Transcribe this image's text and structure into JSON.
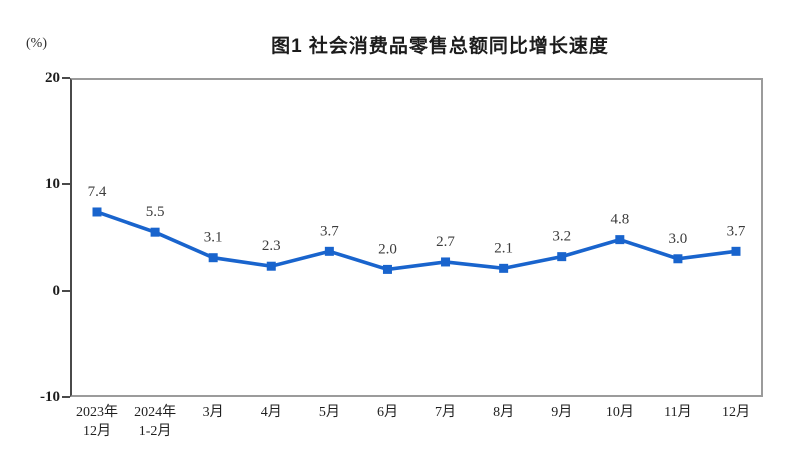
{
  "chart": {
    "title": "图1  社会消费品零售总额同比增长速度",
    "unit_label": "(%)"
  },
  "chart_data": {
    "type": "line",
    "title": "图1  社会消费品零售总额同比增长速度",
    "xlabel": "",
    "ylabel": "(%)",
    "categories": [
      [
        "2023年",
        "12月"
      ],
      [
        "2024年",
        "1-2月"
      ],
      [
        "3月"
      ],
      [
        "4月"
      ],
      [
        "5月"
      ],
      [
        "6月"
      ],
      [
        "7月"
      ],
      [
        "8月"
      ],
      [
        "9月"
      ],
      [
        "10月"
      ],
      [
        "11月"
      ],
      [
        "12月"
      ]
    ],
    "values": [
      7.4,
      5.5,
      3.1,
      2.3,
      3.7,
      2.0,
      2.7,
      2.1,
      3.2,
      4.8,
      3.0,
      3.7
    ],
    "ylim": [
      -10,
      20
    ],
    "yticks": [
      20,
      10,
      0,
      -10
    ],
    "grid": false,
    "legend": false,
    "marker": "square",
    "line_color": "#1964cd",
    "data_label_color": "#3c3c3c",
    "axis_text_color": "#1c1c1c",
    "border_color": "#9b9b9b"
  }
}
